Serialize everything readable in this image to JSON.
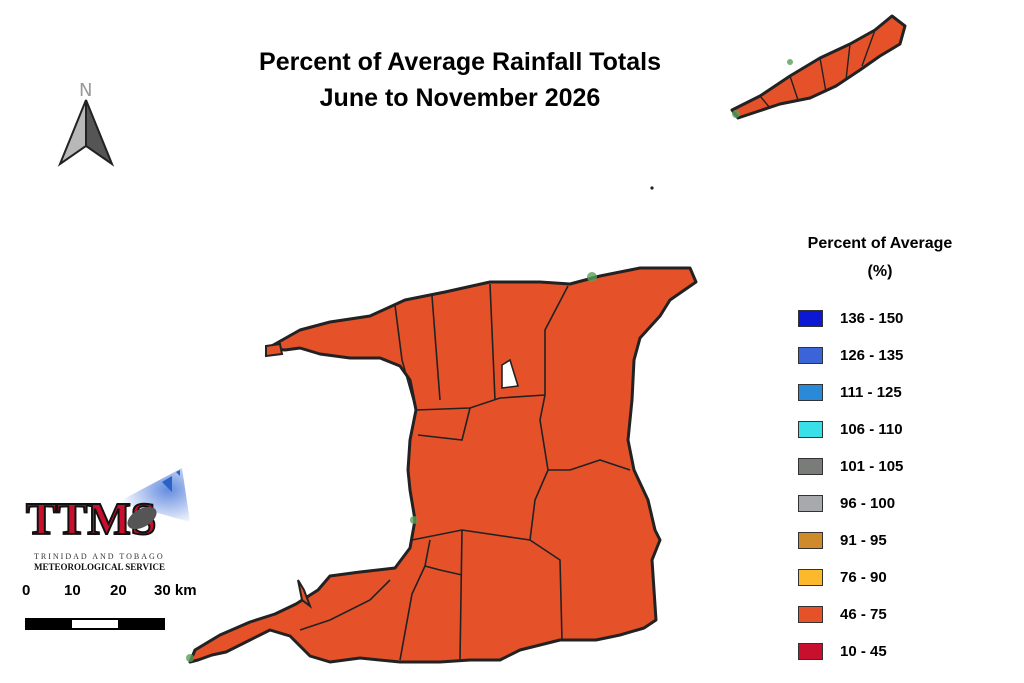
{
  "title": {
    "line1": "Percent of Average Rainfall Totals",
    "line2": "June to November 2026"
  },
  "north_arrow": {
    "label": "N"
  },
  "legend": {
    "title_line1": "Percent of Average",
    "title_line2": "(%)",
    "items": [
      {
        "label": "136 - 150",
        "color": "#0c18d4"
      },
      {
        "label": "126 - 135",
        "color": "#3b64d8"
      },
      {
        "label": "111 - 125",
        "color": "#2b8ad8"
      },
      {
        "label": "106 - 110",
        "color": "#39e0e8"
      },
      {
        "label": "101 - 105",
        "color": "#7a7c79"
      },
      {
        "label": "96 - 100",
        "color": "#a7a9ac"
      },
      {
        "label": "91 - 95",
        "color": "#cf8a2c"
      },
      {
        "label": "76 - 90",
        "color": "#fdb92c"
      },
      {
        "label": "46 - 75",
        "color": "#e5522a"
      },
      {
        "label": "10 - 45",
        "color": "#c8102e"
      }
    ]
  },
  "map": {
    "region_category": "46 - 75",
    "fill_color": "#e5522a",
    "outline_color": "#222222",
    "coast_accent_color": "#5a9e5a"
  },
  "scale_bar": {
    "labels": [
      "0",
      "10",
      "20",
      "30 km"
    ]
  },
  "logo": {
    "acronym": "TTMS",
    "line1": "TRINIDAD AND TOBAGO",
    "line2": "METEOROLOGICAL SERVICE"
  }
}
